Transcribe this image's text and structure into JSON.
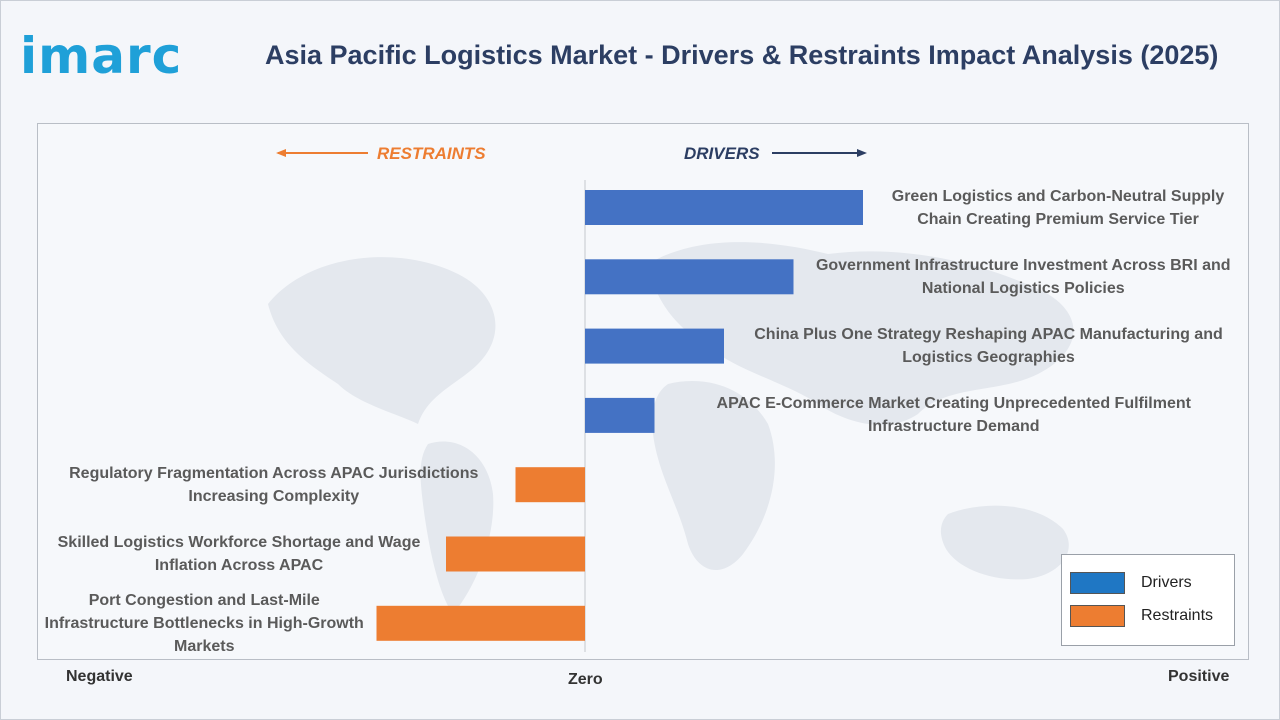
{
  "header": {
    "logo_text": "imarc",
    "title": "Asia Pacific Logistics Market - Drivers & Restraints Impact Analysis (2025)"
  },
  "direction_labels": {
    "restraints": "RESTRAINTS",
    "drivers": "DRIVERS"
  },
  "axis_labels": {
    "negative": "Negative",
    "zero": "Zero",
    "positive": "Positive"
  },
  "colors": {
    "drivers": "#4472c4",
    "restraints": "#ed7d31",
    "title": "#2c3e63",
    "logo": "#1fa0d8"
  },
  "chart_data": {
    "type": "bar",
    "orientation": "horizontal",
    "categories": [
      "Green Logistics and Carbon-Neutral Supply Chain Creating Premium Service Tier",
      "Government Infrastructure Investment Across BRI and National Logistics Policies",
      "China Plus One Strategy Reshaping APAC Manufacturing and Logistics Geographies",
      "APAC E-Commerce Market Creating Unprecedented Fulfilment Infrastructure Demand",
      "Regulatory Fragmentation Across APAC Jurisdictions Increasing Complexity",
      "Skilled Logistics Workforce Shortage and Wage Inflation Across APAC",
      "Port Congestion and Last-Mile Infrastructure Bottlenecks in High-Growth Markets"
    ],
    "label_lines": [
      [
        "Green Logistics and Carbon-Neutral Supply",
        "Chain Creating Premium Service Tier"
      ],
      [
        "Government Infrastructure Investment Across BRI and",
        "National Logistics Policies"
      ],
      [
        "China Plus One Strategy Reshaping APAC Manufacturing and",
        "Logistics Geographies"
      ],
      [
        "APAC E-Commerce Market Creating Unprecedented Fulfilment",
        "Infrastructure Demand"
      ],
      [
        "Regulatory Fragmentation Across APAC Jurisdictions",
        "Increasing Complexity"
      ],
      [
        "Skilled Logistics Workforce Shortage and Wage",
        "Inflation Across APAC"
      ],
      [
        "Port Congestion and Last-Mile",
        "Infrastructure Bottlenecks in High-Growth",
        "Markets"
      ]
    ],
    "series_of": [
      "Drivers",
      "Drivers",
      "Drivers",
      "Drivers",
      "Restraints",
      "Restraints",
      "Restraints"
    ],
    "values": [
      4,
      3,
      2,
      1,
      -1,
      -2,
      -3
    ],
    "xlim": [
      -8,
      9.5
    ],
    "legend": [
      "Drivers",
      "Restraints"
    ],
    "legend_position": "bottom-right",
    "grid": false
  }
}
